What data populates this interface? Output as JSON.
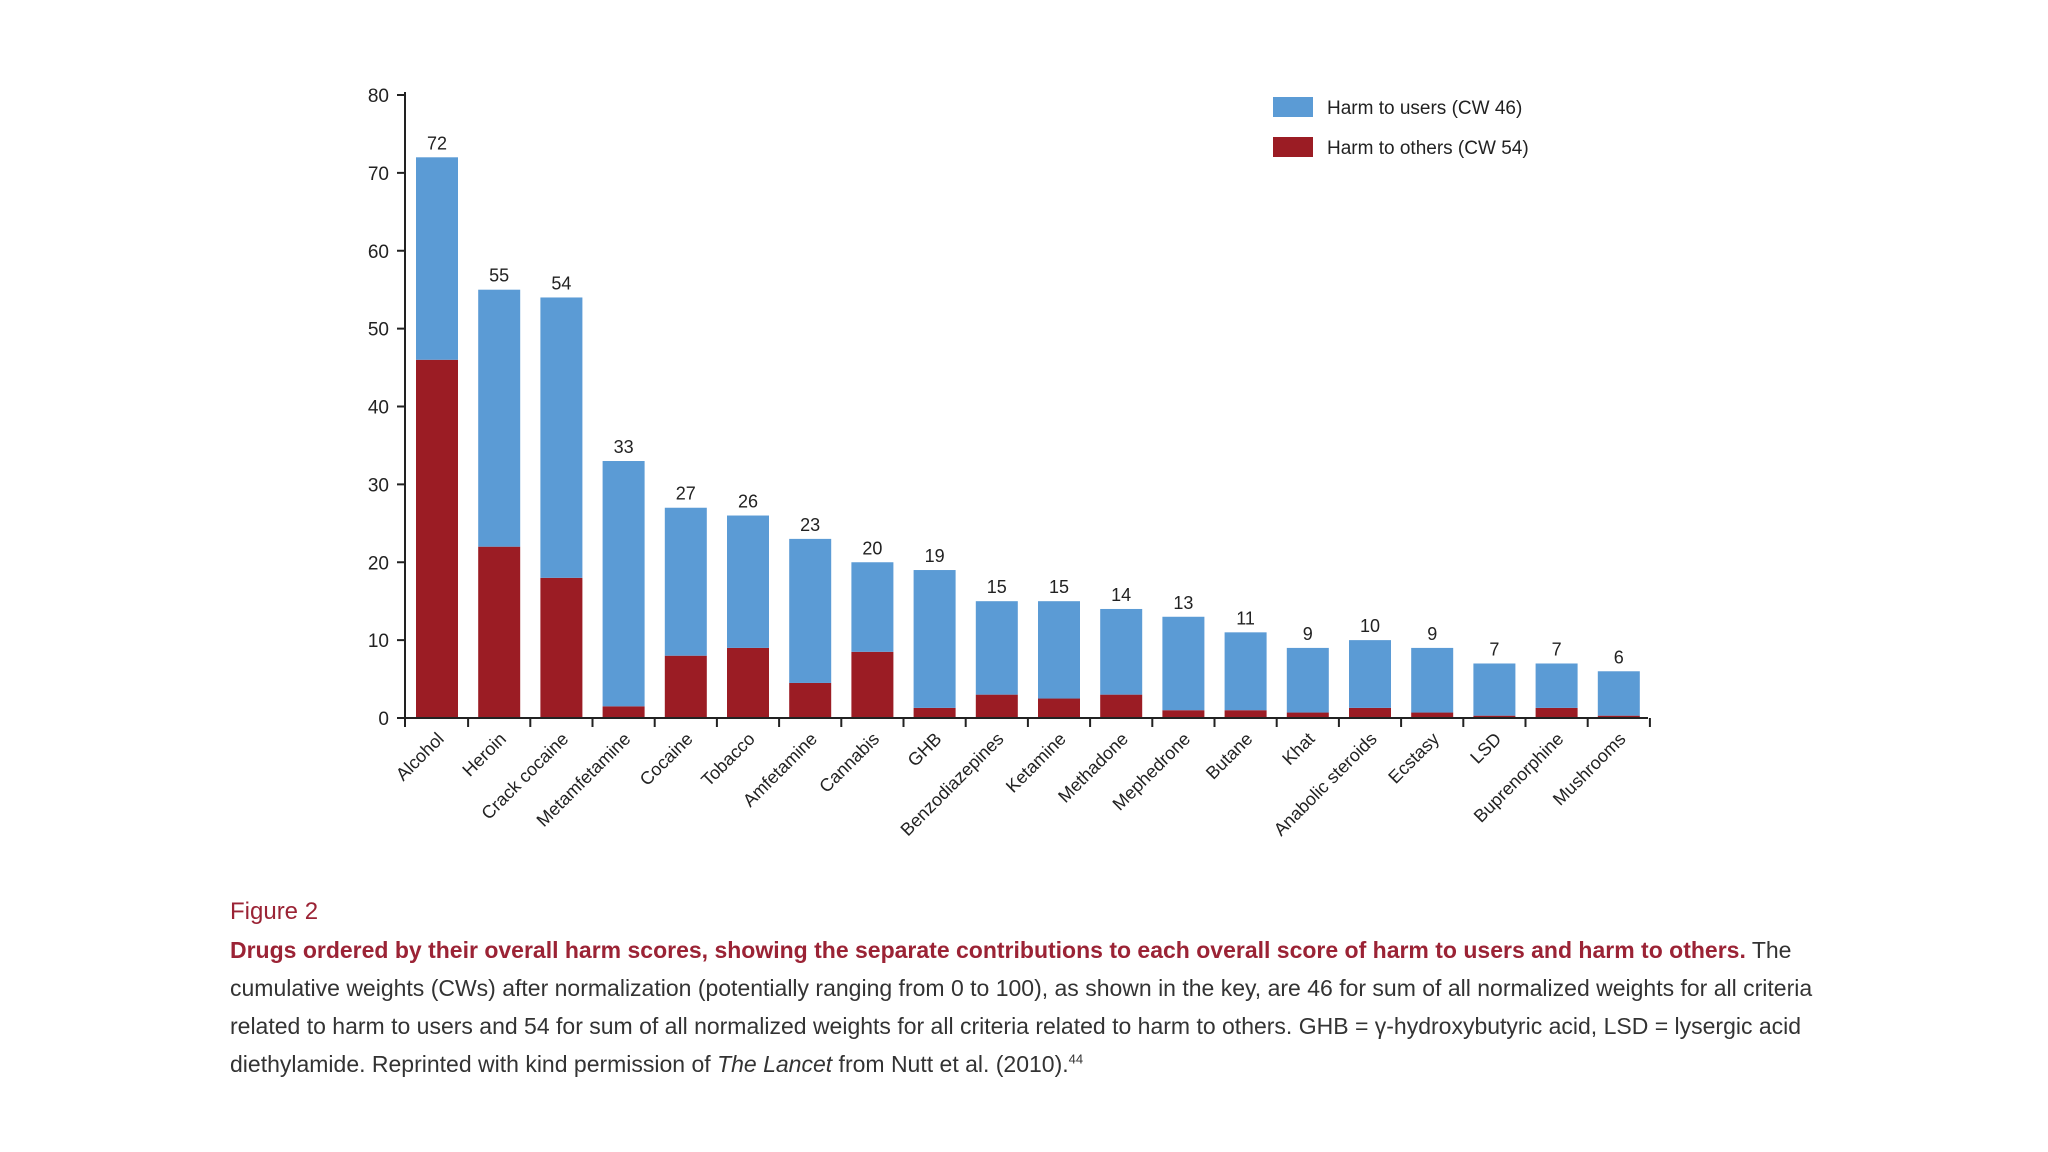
{
  "chart_data": {
    "type": "stacked-bar",
    "categories": [
      "Alcohol",
      "Heroin",
      "Crack cocaine",
      "Metamfetamine",
      "Cocaine",
      "Tobacco",
      "Amfetamine",
      "Cannabis",
      "GHB",
      "Benzodiazepines",
      "Ketamine",
      "Methadone",
      "Mephedrone",
      "Butane",
      "Khat",
      "Anabolic steroids",
      "Ecstasy",
      "LSD",
      "Buprenorphine",
      "Mushrooms"
    ],
    "series": [
      {
        "name": "Harm to others (CW 54)",
        "key": "others",
        "color": "#9b1c24",
        "values": [
          46,
          22,
          18,
          1.5,
          8,
          9,
          4.5,
          8.5,
          1.3,
          3,
          2.5,
          3,
          1,
          1,
          0.7,
          1.3,
          0.7,
          0.3,
          1.3,
          0.3
        ]
      },
      {
        "name": "Harm to users (CW 46)",
        "key": "users",
        "color": "#5b9bd5",
        "values": [
          26,
          33,
          36,
          31.5,
          19,
          17,
          18.5,
          11.5,
          17.7,
          12,
          12.5,
          11,
          12,
          10,
          8.3,
          8.7,
          8.3,
          6.7,
          5.7,
          5.7
        ]
      }
    ],
    "totals": [
      72,
      55,
      54,
      33,
      27,
      26,
      23,
      20,
      19,
      15,
      15,
      14,
      13,
      11,
      9,
      10,
      9,
      7,
      7,
      6
    ],
    "ylim": [
      0,
      80
    ],
    "yticks": [
      0,
      10,
      20,
      30,
      40,
      50,
      60,
      70,
      80
    ],
    "legend": [
      {
        "label": "Harm to users (CW 46)",
        "color": "#5b9bd5"
      },
      {
        "label": "Harm to others (CW 54)",
        "color": "#9b1c24"
      }
    ],
    "legend_position": "top-right",
    "xlabel": "",
    "ylabel": ""
  },
  "caption": {
    "figure_label": "Figure 2",
    "title": "Drugs ordered by their overall harm scores, showing the separate contributions to each overall score of harm to users and harm to others.",
    "body_1": " The cumulative weights (CWs) after normalization (potentially ranging from 0 to 100), as shown in the key, are 46 for sum of all normalized weights for all criteria related to harm to users and 54 for sum of all normalized weights for all criteria related to harm to others. GHB = γ-hydroxybutyric acid, LSD = lysergic acid diethylamide. Reprinted with kind permission of ",
    "journal": "The Lancet",
    "body_2": " from Nutt et al. (2010).",
    "ref": "44"
  }
}
